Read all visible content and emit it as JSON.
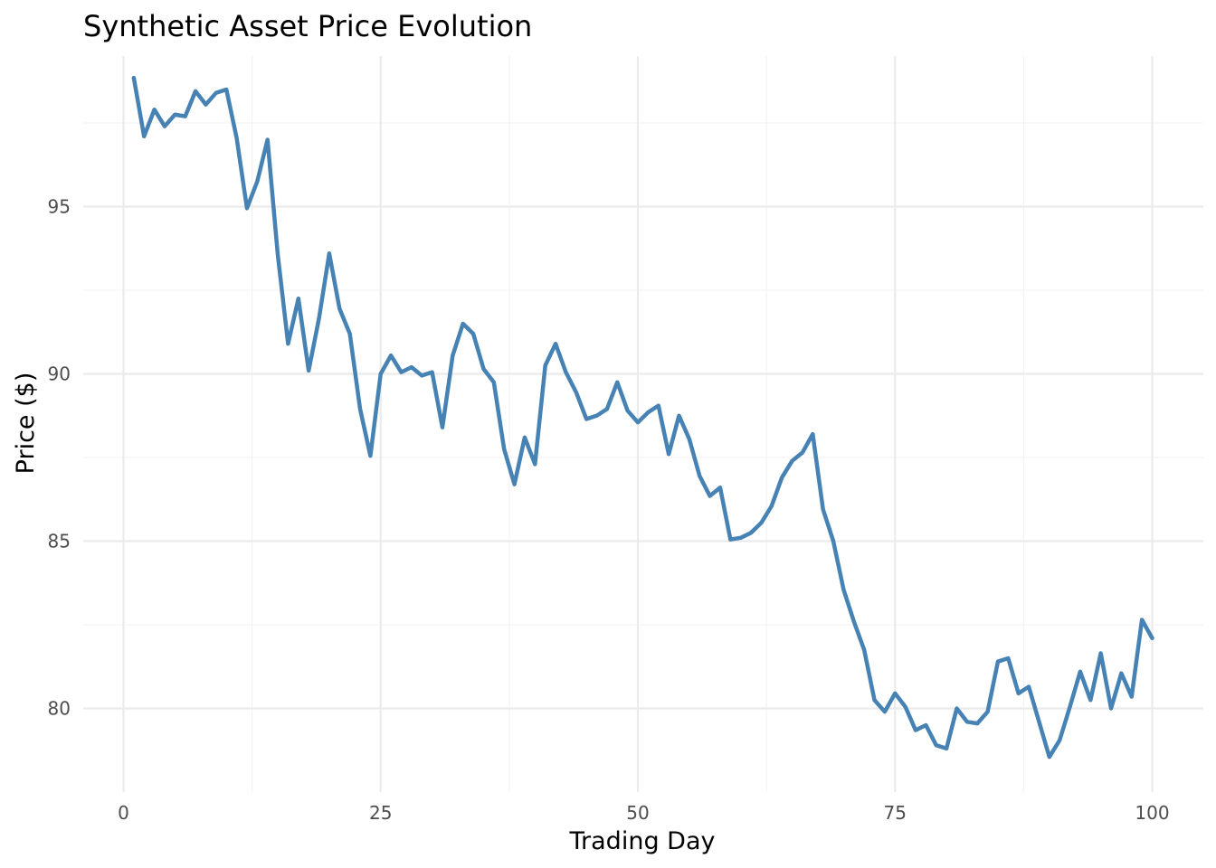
{
  "chart_data": {
    "type": "line",
    "title": "Synthetic Asset Price Evolution",
    "xlabel": "Trading Day",
    "ylabel": "Price ($)",
    "xlim": [
      0,
      100
    ],
    "ylim": [
      77.5,
      99.5
    ],
    "x_ticks": [
      0,
      25,
      50,
      75,
      100
    ],
    "x_tick_labels": [
      "0",
      "25",
      "50",
      "75",
      "100"
    ],
    "y_ticks": [
      80,
      85,
      90,
      95
    ],
    "y_tick_labels": [
      "80",
      "85",
      "90",
      "95"
    ],
    "grid": true,
    "legend": "none",
    "colors": {
      "series": "#4682b4"
    },
    "series": [
      {
        "x": [
          1,
          2,
          3,
          4,
          5,
          6,
          7,
          8,
          9,
          10,
          11,
          12,
          13,
          14,
          15,
          16,
          17,
          18,
          19,
          20,
          21,
          22,
          23,
          24,
          25,
          26,
          27,
          28,
          29,
          30,
          31,
          32,
          33,
          34,
          35,
          36,
          37,
          38,
          39,
          40,
          41,
          42,
          43,
          44,
          45,
          46,
          47,
          48,
          49,
          50,
          51,
          52,
          53,
          54,
          55,
          56,
          57,
          58,
          59,
          60,
          61,
          62,
          63,
          64,
          65,
          66,
          67,
          68,
          69,
          70,
          71,
          72,
          73,
          74,
          75,
          76,
          77,
          78,
          79,
          80,
          81,
          82,
          83,
          84,
          85,
          86,
          87,
          88,
          89,
          90,
          91,
          92,
          93,
          94,
          95,
          96,
          97,
          98,
          99,
          100
        ],
        "values": [
          98.85,
          97.1,
          97.9,
          97.4,
          97.75,
          97.7,
          98.45,
          98.05,
          98.4,
          98.5,
          97.05,
          94.95,
          95.75,
          97.0,
          93.55,
          90.9,
          92.25,
          90.1,
          91.65,
          93.6,
          91.95,
          91.2,
          88.95,
          87.55,
          90.0,
          90.55,
          90.05,
          90.2,
          89.95,
          90.05,
          88.4,
          90.55,
          91.5,
          91.2,
          90.15,
          89.75,
          87.75,
          86.7,
          88.1,
          87.3,
          90.25,
          90.9,
          90.05,
          89.45,
          88.65,
          88.75,
          88.95,
          89.75,
          88.9,
          88.55,
          88.85,
          89.05,
          87.6,
          88.75,
          88.05,
          86.95,
          86.35,
          86.6,
          85.05,
          85.1,
          85.25,
          85.55,
          86.05,
          86.9,
          87.4,
          87.65,
          88.2,
          85.95,
          85.0,
          83.55,
          82.6,
          81.75,
          80.25,
          79.9,
          80.45,
          80.05,
          79.35,
          79.5,
          78.9,
          78.8,
          80.0,
          79.6,
          79.55,
          79.9,
          81.4,
          81.5,
          80.45,
          80.65,
          79.6,
          78.55,
          79.05,
          80.05,
          81.1,
          80.25,
          81.65,
          80.0,
          81.05,
          80.35,
          82.65,
          82.1
        ]
      }
    ]
  }
}
